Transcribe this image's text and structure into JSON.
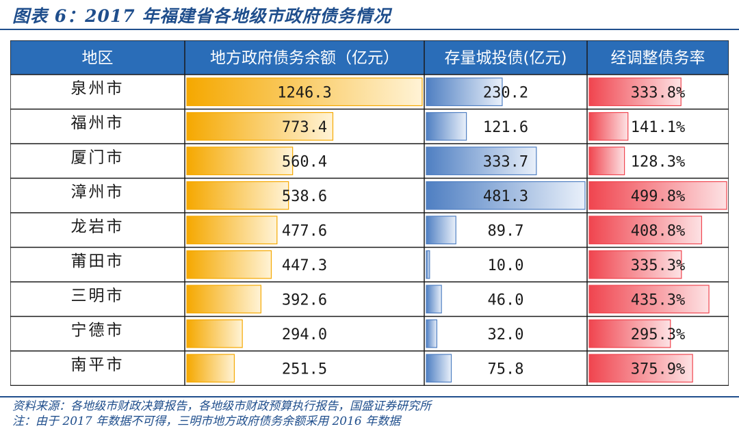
{
  "figure": {
    "title": "图表 6：2017 年福建省各地级市政府债务情况",
    "source": "资料来源：各地级市财政决算报告，各地级市财政预算执行报告，国盛证券研究所",
    "note": "注：由于 2017 年数据不可得，三明市地方政府债务余额采用 2016 年数据"
  },
  "colors": {
    "header_bg": "#2a6db8",
    "accent": "#1f4e8c",
    "debt_bar": "#f5a800",
    "lgfv_bar": "#4f7fc2",
    "ratio_bar": "#f0454f"
  },
  "chart_data": {
    "type": "table",
    "columns": [
      "地区",
      "地方政府债务余额（亿元）",
      "存量城投债(亿元)",
      "经调整债务率"
    ],
    "rows": [
      {
        "region": "泉州市",
        "debt": 1246.3,
        "debt_label": "1246.3",
        "lgfv": 230.2,
        "lgfv_label": "230.2",
        "ratio": 333.8,
        "ratio_label": "333.8%"
      },
      {
        "region": "福州市",
        "debt": 773.4,
        "debt_label": "773.4",
        "lgfv": 121.6,
        "lgfv_label": "121.6",
        "ratio": 141.1,
        "ratio_label": "141.1%"
      },
      {
        "region": "厦门市",
        "debt": 560.4,
        "debt_label": "560.4",
        "lgfv": 333.7,
        "lgfv_label": "333.7",
        "ratio": 128.3,
        "ratio_label": "128.3%"
      },
      {
        "region": "漳州市",
        "debt": 538.6,
        "debt_label": "538.6",
        "lgfv": 481.3,
        "lgfv_label": "481.3",
        "ratio": 499.8,
        "ratio_label": "499.8%"
      },
      {
        "region": "龙岩市",
        "debt": 477.6,
        "debt_label": "477.6",
        "lgfv": 89.7,
        "lgfv_label": "89.7",
        "ratio": 408.8,
        "ratio_label": "408.8%"
      },
      {
        "region": "莆田市",
        "debt": 447.3,
        "debt_label": "447.3",
        "lgfv": 10.0,
        "lgfv_label": "10.0",
        "ratio": 335.3,
        "ratio_label": "335.3%"
      },
      {
        "region": "三明市",
        "debt": 392.6,
        "debt_label": "392.6",
        "lgfv": 46.0,
        "lgfv_label": "46.0",
        "ratio": 435.3,
        "ratio_label": "435.3%"
      },
      {
        "region": "宁德市",
        "debt": 294.0,
        "debt_label": "294.0",
        "lgfv": 32.0,
        "lgfv_label": "32.0",
        "ratio": 295.3,
        "ratio_label": "295.3%"
      },
      {
        "region": "南平市",
        "debt": 251.5,
        "debt_label": "251.5",
        "lgfv": 75.8,
        "lgfv_label": "75.8",
        "ratio": 375.9,
        "ratio_label": "375.9%"
      }
    ]
  }
}
